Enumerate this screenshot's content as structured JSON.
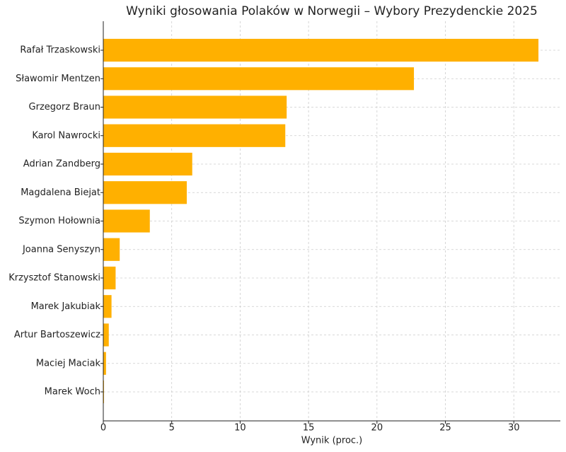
{
  "chart_data": {
    "type": "barh",
    "title": "Wyniki głosowania Polaków w Norwegii – Wybory Prezydenckie 2025",
    "x_label": "Wynik (proc.)",
    "categories": [
      "Rafał Trzaskowski",
      "Sławomir Mentzen",
      "Grzegorz Braun",
      "Karol Nawrocki",
      "Adrian Zandberg",
      "Magdalena Biejat",
      "Szymon Hołownia",
      "Joanna Senyszyn",
      "Krzysztof Stanowski",
      "Marek Jakubiak",
      "Artur Bartoszewicz",
      "Maciej Maciak",
      "Marek Woch"
    ],
    "values": [
      31.8,
      22.7,
      13.4,
      13.3,
      6.5,
      6.1,
      3.4,
      1.2,
      0.9,
      0.6,
      0.4,
      0.2,
      0.05
    ],
    "color": "#ffb000",
    "xlim": [
      0,
      33.4
    ],
    "xticks": [
      0,
      5,
      10,
      15,
      20,
      25,
      30
    ],
    "grid": true
  }
}
